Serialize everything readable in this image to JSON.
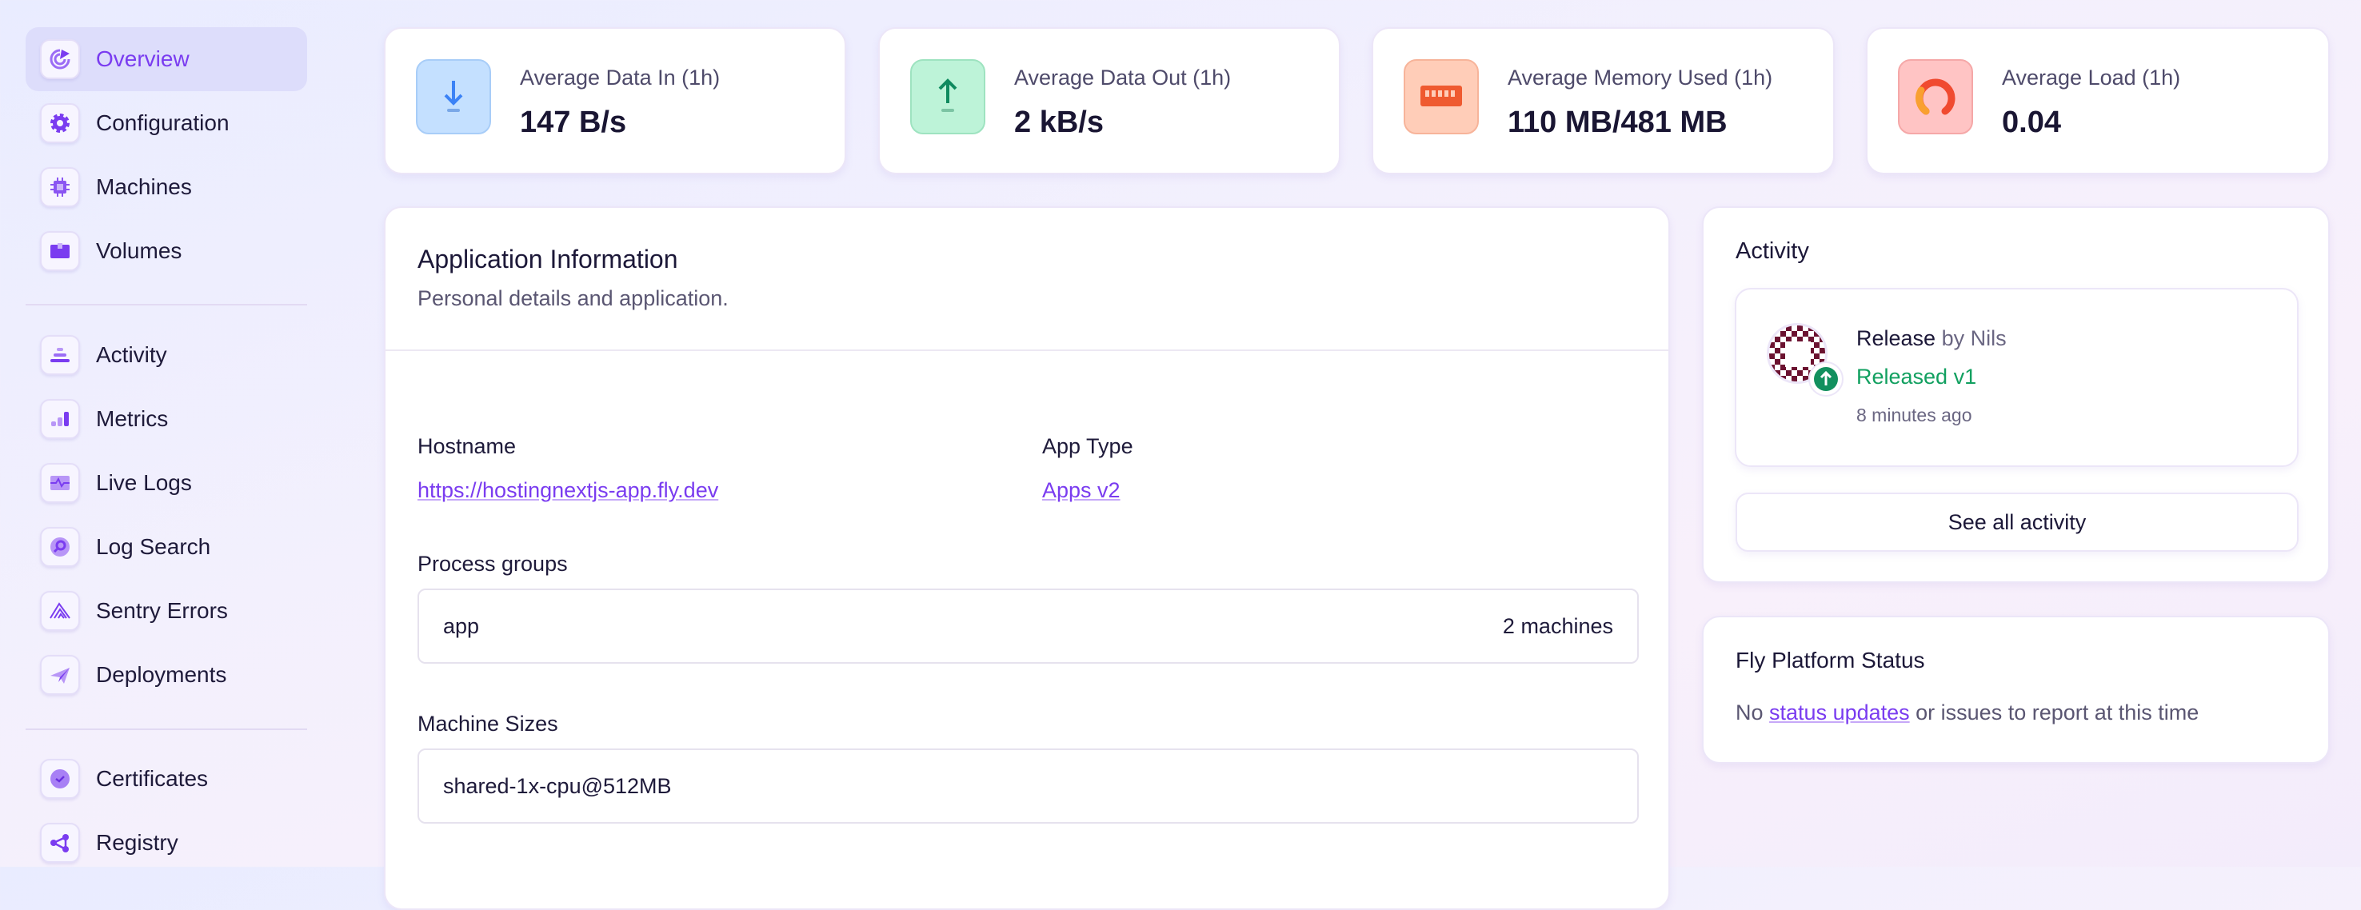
{
  "sidebar": {
    "items": [
      {
        "label": "Overview",
        "icon": "overview-icon",
        "active": true
      },
      {
        "label": "Configuration",
        "icon": "gear-icon"
      },
      {
        "label": "Machines",
        "icon": "chip-icon"
      },
      {
        "label": "Volumes",
        "icon": "box-icon"
      },
      {
        "label": "Activity",
        "icon": "activity-icon"
      },
      {
        "label": "Metrics",
        "icon": "bar-chart-icon"
      },
      {
        "label": "Live Logs",
        "icon": "pulse-icon"
      },
      {
        "label": "Log Search",
        "icon": "search-icon"
      },
      {
        "label": "Sentry Errors",
        "icon": "sentry-icon"
      },
      {
        "label": "Deployments",
        "icon": "paper-plane-icon"
      },
      {
        "label": "Certificates",
        "icon": "badge-check-icon"
      },
      {
        "label": "Registry",
        "icon": "share-icon"
      }
    ]
  },
  "stats": [
    {
      "label": "Average Data In (1h)",
      "value": "147 B/s",
      "icon": "arrow-down-icon",
      "color": "#3b82f6",
      "bg": "#c4e0ff"
    },
    {
      "label": "Average Data Out (1h)",
      "value": "2 kB/s",
      "icon": "arrow-up-icon",
      "color": "#0f8a5f",
      "bg": "#bdf3d8"
    },
    {
      "label": "Average Memory Used (1h)",
      "value": "110 MB/481 MB",
      "icon": "memory-icon",
      "color": "#ef5a30",
      "bg": "#ffcdb8"
    },
    {
      "label": "Average Load (1h)",
      "value": "0.04",
      "icon": "gauge-icon",
      "color": "#f04a30",
      "bg": "#ffc4c4"
    }
  ],
  "app_info": {
    "title": "Application Information",
    "subtitle": "Personal details and application.",
    "hostname_label": "Hostname",
    "hostname": "https://hostingnextjs-app.fly.dev",
    "app_type_label": "App Type",
    "app_type": "Apps v2",
    "process_groups_label": "Process groups",
    "process_group": {
      "name": "app",
      "machines": "2 machines"
    },
    "machine_sizes_label": "Machine Sizes",
    "machine_size": "shared-1x-cpu@512MB"
  },
  "activity": {
    "title": "Activity",
    "item": {
      "type": "Release",
      "by": "by Nils",
      "status": "Released v1",
      "time": "8 minutes ago",
      "status_color": "#12a060"
    },
    "see_all": "See all activity"
  },
  "status": {
    "title": "Fly Platform Status",
    "prefix": "No ",
    "link": "status updates",
    "suffix": " or issues to report at this time"
  }
}
